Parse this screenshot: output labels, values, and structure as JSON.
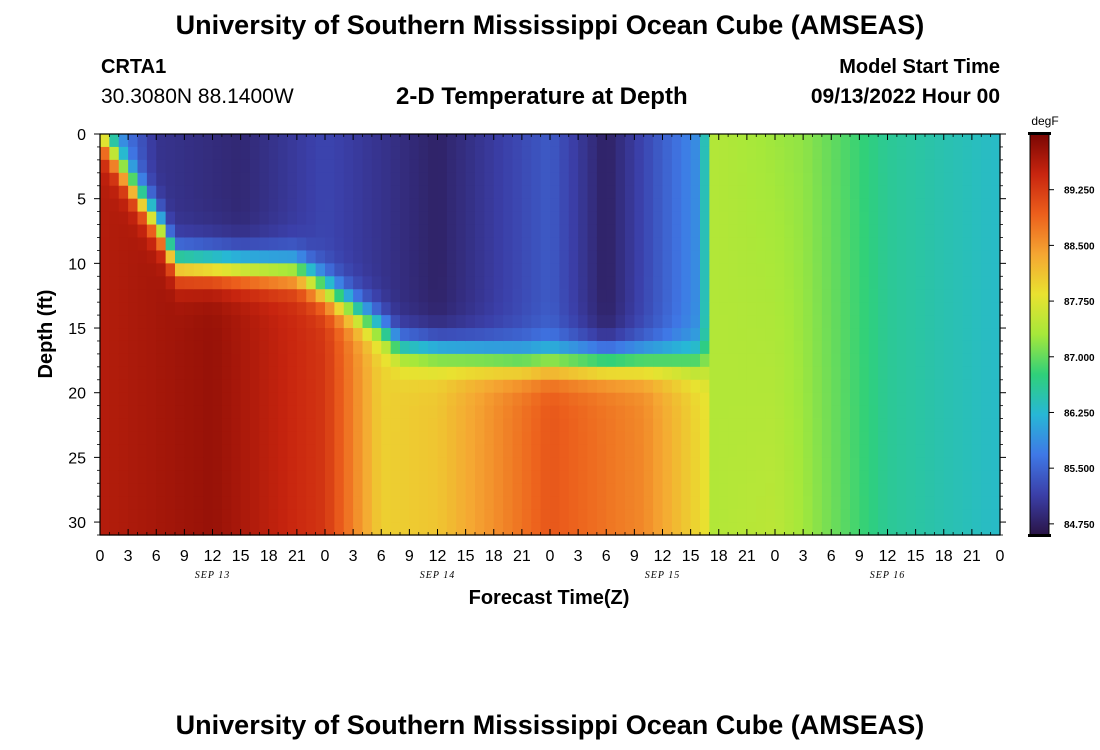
{
  "header": {
    "title": "University of Southern Mississippi Ocean Cube (AMSEAS)",
    "station_id": "CRTA1",
    "station_coords": "30.3080N  88.1400W",
    "subtitle": "2-D Temperature at Depth",
    "model_start_label": "Model Start Time",
    "model_start_value": "09/13/2022 Hour 00",
    "footer_title": "University of Southern Mississippi Ocean Cube (AMSEAS)"
  },
  "chart_data": {
    "type": "heatmap",
    "title": "2-D Temperature at Depth",
    "xlabel": "Forecast Time(Z)",
    "ylabel": "Depth (ft)",
    "x_range_hours": [
      0,
      96
    ],
    "y_range_ft": [
      0,
      31
    ],
    "y_inverted": true,
    "x_tick_labels": [
      "0",
      "3",
      "6",
      "9",
      "12",
      "15",
      "18",
      "21",
      "0",
      "3",
      "6",
      "9",
      "12",
      "15",
      "18",
      "21",
      "0",
      "3",
      "6",
      "9",
      "12",
      "15",
      "18",
      "21",
      "0",
      "3",
      "6",
      "9",
      "12",
      "15",
      "18",
      "21",
      "0"
    ],
    "x_tick_hours": [
      0,
      3,
      6,
      9,
      12,
      15,
      18,
      21,
      24,
      27,
      30,
      33,
      36,
      39,
      42,
      45,
      48,
      51,
      54,
      57,
      60,
      63,
      66,
      69,
      72,
      75,
      78,
      81,
      84,
      87,
      90,
      93,
      96
    ],
    "day_labels": [
      {
        "label": "SEP 13",
        "hour": 12
      },
      {
        "label": "SEP 14",
        "hour": 36
      },
      {
        "label": "SEP 15",
        "hour": 60
      },
      {
        "label": "SEP 16",
        "hour": 84
      }
    ],
    "y_tick_labels": [
      "0",
      "5",
      "10",
      "15",
      "20",
      "25",
      "30"
    ],
    "y_tick_values": [
      0,
      5,
      10,
      15,
      20,
      25,
      30
    ],
    "colorbar": {
      "unit": "degF",
      "min": 84.6,
      "max": 90.0,
      "tick_labels": [
        "89.250",
        "88.500",
        "87.750",
        "87.000",
        "86.250",
        "85.500",
        "84.750"
      ],
      "tick_values": [
        89.25,
        88.5,
        87.75,
        87.0,
        86.25,
        85.5,
        84.75
      ],
      "colors": [
        "#2a1446",
        "#3b3fa8",
        "#3f78e6",
        "#27b7d6",
        "#2fd07a",
        "#a6e83a",
        "#e9e230",
        "#f5a632",
        "#ec5f1c",
        "#c8250f",
        "#7a0603"
      ]
    },
    "thermocline_depth_ft_by_hour": [
      {
        "hour": 0,
        "depth": 0
      },
      {
        "hour": 7,
        "depth": 8
      },
      {
        "hour": 8,
        "depth": 10
      },
      {
        "hour": 21,
        "depth": 10.5
      },
      {
        "hour": 24,
        "depth": 12
      },
      {
        "hour": 30,
        "depth": 15
      },
      {
        "hour": 32,
        "depth": 16.5
      },
      {
        "hour": 45,
        "depth": 17.5
      },
      {
        "hour": 65,
        "depth": 17.5
      },
      {
        "hour": 65.5,
        "depth": 0
      },
      {
        "hour": 96,
        "depth": 0
      }
    ],
    "surface_temp_degF_by_hour": [
      {
        "hour": 0,
        "temp": 86.2
      },
      {
        "hour": 6,
        "temp": 85.0
      },
      {
        "hour": 15,
        "temp": 84.85
      },
      {
        "hour": 24,
        "temp": 85.2
      },
      {
        "hour": 36,
        "temp": 84.78
      },
      {
        "hour": 48,
        "temp": 85.4
      },
      {
        "hour": 54,
        "temp": 84.75
      },
      {
        "hour": 64,
        "temp": 85.9
      },
      {
        "hour": 65.5,
        "temp": 87.4
      },
      {
        "hour": 75,
        "temp": 87.2
      },
      {
        "hour": 84,
        "temp": 86.6
      },
      {
        "hour": 96,
        "temp": 86.3
      }
    ],
    "bottom_temp_degF_by_hour": [
      {
        "hour": 0,
        "temp": 89.6
      },
      {
        "hour": 12,
        "temp": 89.8
      },
      {
        "hour": 24,
        "temp": 89.3
      },
      {
        "hour": 30,
        "temp": 88.0
      },
      {
        "hour": 36,
        "temp": 88.1
      },
      {
        "hour": 48,
        "temp": 89.0
      },
      {
        "hour": 58,
        "temp": 88.6
      },
      {
        "hour": 65,
        "temp": 87.8
      },
      {
        "hour": 65.5,
        "temp": 87.4
      },
      {
        "hour": 72,
        "temp": 87.6
      },
      {
        "hour": 84,
        "temp": 86.6
      },
      {
        "hour": 96,
        "temp": 86.3
      }
    ]
  }
}
